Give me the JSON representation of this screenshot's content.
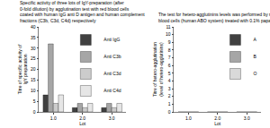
{
  "chart_data": [
    {
      "type": "bar",
      "title": "Specific activity of three lots of IgY-preparation (after 0-fold dilution) by agglutination test with red blood cells coated with human IgG anti D antigen and human complement fractions (C3b, C3d, C4d) respectively",
      "x_label": "Lot",
      "y_label": "Titre of specific activity of IgY preparation",
      "categories": [
        "1.0",
        "2.0",
        "3.0"
      ],
      "series": [
        {
          "name": "Anti IgG",
          "color": "#404040",
          "values": [
            8,
            2,
            2
          ]
        },
        {
          "name": "Anti C3b",
          "color": "#a6a6a6",
          "values": [
            32,
            4,
            4
          ]
        },
        {
          "name": "Anti C3d",
          "color": "#cccccc",
          "values": [
            4,
            2,
            2
          ]
        },
        {
          "name": "Anti C4d",
          "color": "#e6e6e6",
          "values": [
            8,
            4,
            4
          ]
        }
      ],
      "ylim": [
        0,
        40
      ],
      "yticks": [
        0,
        5,
        10,
        15,
        20,
        25,
        30,
        35,
        40
      ],
      "grid": false,
      "legend": "upper right"
    },
    {
      "type": "bar",
      "title": "The test for hetero-agglutinins levels was performed by red blood cells (human ABO system) treated with 0.1% papain",
      "x_label": "Lot",
      "y_label": "Titre of hetero-agglutination (level of hetero-agglutinins)",
      "categories": [
        "1.0",
        "2.0",
        "3.0"
      ],
      "series": [
        {
          "name": "A",
          "color": "#404040",
          "values": [
            0,
            0,
            0
          ]
        },
        {
          "name": "B",
          "color": "#a6a6a6",
          "values": [
            0,
            0,
            0
          ]
        },
        {
          "name": "O",
          "color": "#d9d9d9",
          "values": [
            0,
            0,
            0
          ]
        }
      ],
      "ylim": [
        0,
        11
      ],
      "yticks": [
        0,
        1,
        2,
        3,
        4,
        5,
        6,
        7,
        8,
        9,
        10,
        11
      ],
      "grid": false,
      "legend": "upper right"
    }
  ]
}
